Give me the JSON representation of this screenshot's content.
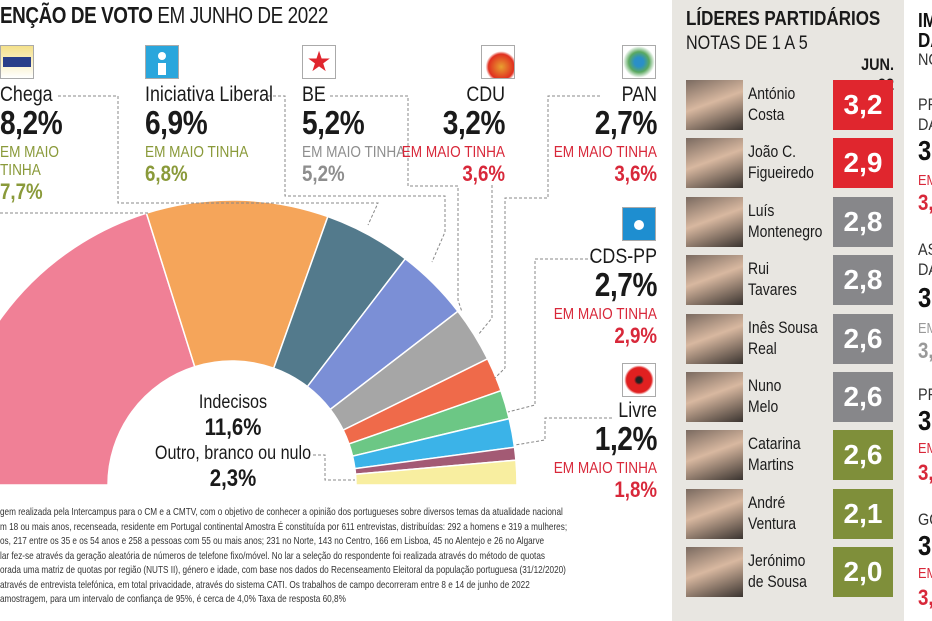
{
  "title": {
    "bold": "ENÇÃO DE VOTO",
    "rest": " EM JUNHO DE 2022"
  },
  "prev_label": "EM MAIO TINHA",
  "parties": [
    {
      "name": "Chega",
      "pct": "8,2%",
      "prev_label_1": "EM MAIO",
      "prev_label_2": "TINHA",
      "prev": "7,7%",
      "trend_color": "#8a9a3a",
      "logo": "chega-logo"
    },
    {
      "name": "Iniciativa Liberal",
      "pct": "6,9%",
      "prev": "6,8%",
      "trend_color": "#8a9a3a",
      "logo": "iniciativa-liberal-logo"
    },
    {
      "name": "BE",
      "pct": "5,2%",
      "prev": "5,2%",
      "trend_color": "#8e8e8e",
      "logo": "be-star-logo"
    },
    {
      "name": "CDU",
      "pct": "3,2%",
      "prev": "3,6%",
      "trend_color": "#d8283a",
      "logo": "cdu-hammer-sickle-logo"
    },
    {
      "name": "PAN",
      "pct": "2,7%",
      "prev": "3,6%",
      "trend_color": "#d8283a",
      "logo": "pan-paw-logo"
    },
    {
      "name": "CDS-PP",
      "pct": "2,7%",
      "prev": "2,9%",
      "trend_color": "#d8283a",
      "logo": "cds-pp-logo"
    },
    {
      "name": "Livre",
      "pct": "1,2%",
      "prev": "1,8%",
      "trend_color": "#d8283a",
      "logo": "livre-poppy-logo"
    }
  ],
  "center": {
    "undecided_label": "Indecisos",
    "undecided_pct": "11,6%",
    "other_label": "Outro, branco ou nulo",
    "other_pct": "2,3%"
  },
  "chart_data": {
    "type": "pie",
    "subtype": "semicircle-donut",
    "title": "ENÇÃO DE VOTO EM JUNHO DE 2022",
    "slices": [
      {
        "label": "",
        "value": 33.4,
        "color": "#f08096"
      },
      {
        "label": "",
        "value": 17.1,
        "color": "#f5a55a"
      },
      {
        "label": "Chega",
        "value": 8.2,
        "color": "#537a8c"
      },
      {
        "label": "Iniciativa Liberal",
        "value": 6.9,
        "color": "#7b8fd6"
      },
      {
        "label": "BE",
        "value": 5.2,
        "color": "#a6a6a6"
      },
      {
        "label": "CDU",
        "value": 3.2,
        "color": "#ef6a4a"
      },
      {
        "label": "PAN",
        "value": 2.7,
        "color": "#6cc785"
      },
      {
        "label": "CDS-PP",
        "value": 2.7,
        "color": "#3bb3e8"
      },
      {
        "label": "Livre",
        "value": 1.2,
        "color": "#a35a74"
      },
      {
        "label": "Outro, branco ou nulo",
        "value": 2.3,
        "color": "#f8eea0"
      }
    ],
    "undecided": 11.6
  },
  "footnote": [
    "gem realizada pela Intercampus para o CM e a CMTV, com o objetivo de conhecer a opinião dos portugueses sobre diversos temas da atualidade nacional",
    "m 18 ou mais anos, recenseada, residente em Portugal continental Amostra É constituída por 611 entrevistas, distribuídas: 292 a homens e 319 a mulheres;",
    "os, 217 entre os 35 e os 54 anos e 258 a pessoas com 55 ou mais anos; 231 no Norte, 143 no Centro, 166 em Lisboa, 45 no Alentejo e 26 no Algarve",
    "lar fez-se através da geração aleatória de números de telefone fixo/móvel. No lar a seleção do respondente foi realizada através do método de quotas",
    "orada uma matriz de quotas por região (NUTS II), género e idade, com base nos dados do Recenseamento Eleitoral da população portuguesa (31/12/2020)",
    "através de entrevista telefónica, em total privacidade, através do sistema CATI. Os trabalhos de campo decorreram entre 8 e 14 de junho de 2022",
    "amostragem, para um intervalo de confiança de 95%, é cerca de 4,0% Taxa de resposta 60,8%"
  ],
  "leaders": {
    "title": "LÍDERES PARTIDÁRIOS",
    "subtitle": "NOTAS DE 1 A 5",
    "column": "JUN. 22",
    "rows": [
      {
        "first": "António",
        "last": "Costa",
        "score": "3,2",
        "color": "#e0262e"
      },
      {
        "first": "João C.",
        "last": "Figueiredo",
        "score": "2,9",
        "color": "#e0262e"
      },
      {
        "first": "Luís",
        "last": "Montenegro",
        "score": "2,8",
        "color": "#87878a"
      },
      {
        "first": "Rui",
        "last": "Tavares",
        "score": "2,8",
        "color": "#87878a"
      },
      {
        "first": "Inês Sousa",
        "last": "Real",
        "score": "2,6",
        "color": "#87878a"
      },
      {
        "first": "Nuno",
        "last": "Melo",
        "score": "2,6",
        "color": "#87878a"
      },
      {
        "first": "Catarina",
        "last": "Martins",
        "score": "2,6",
        "color": "#7f8f3a"
      },
      {
        "first": "André",
        "last": "Ventura",
        "score": "2,1",
        "color": "#7f8f3a"
      },
      {
        "first": "Jerónimo",
        "last": "de Sousa",
        "score": "2,0",
        "color": "#7f8f3a"
      }
    ]
  },
  "cropped_column": [
    {
      "text": "IM",
      "style": "head"
    },
    {
      "text": "DA",
      "style": "head"
    },
    {
      "text": "NO",
      "style": "sub"
    },
    {
      "text": "PR",
      "style": "sub"
    },
    {
      "text": "DA",
      "style": "sub"
    },
    {
      "text": "3",
      "style": "big"
    },
    {
      "text": "EM",
      "style": "red"
    },
    {
      "text": "3,",
      "style": "redbig"
    },
    {
      "text": "AS",
      "style": "sub"
    },
    {
      "text": "DA",
      "style": "sub"
    },
    {
      "text": "3",
      "style": "big"
    },
    {
      "text": "EM",
      "style": "grey"
    },
    {
      "text": "3,",
      "style": "greybig"
    },
    {
      "text": "PR",
      "style": "sub"
    },
    {
      "text": "3",
      "style": "big"
    },
    {
      "text": "EM",
      "style": "red"
    },
    {
      "text": "3,",
      "style": "redbig"
    },
    {
      "text": "GO",
      "style": "sub"
    },
    {
      "text": "3",
      "style": "big"
    },
    {
      "text": "EM",
      "style": "red"
    },
    {
      "text": "3,",
      "style": "redbig"
    }
  ]
}
